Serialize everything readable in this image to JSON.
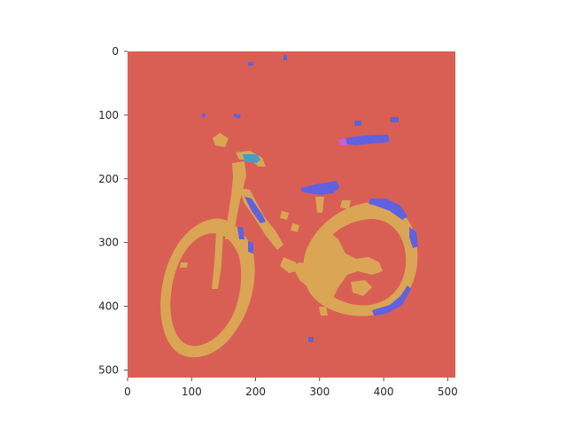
{
  "figure": {
    "kind": "segmentation-mask-image",
    "colors": {
      "background": "#D95F55",
      "bike": "#DAA555",
      "blue": "#6161E0",
      "cyan": "#4B9BC8",
      "magenta": "#C561D9",
      "tick": "#262626"
    }
  },
  "axes": {
    "x_ticks": [
      "0",
      "100",
      "200",
      "300",
      "400",
      "500"
    ],
    "y_ticks": [
      "0",
      "100",
      "200",
      "300",
      "400",
      "500"
    ],
    "xlim": [
      0,
      512
    ],
    "ylim": [
      512,
      0
    ],
    "grid": false
  },
  "image": {
    "subject-outline": "bicycle",
    "regions": [
      {
        "name": "background",
        "color": "background"
      },
      {
        "name": "bicycle-frame-and-wheels",
        "color": "bike"
      },
      {
        "name": "saddle-and-fender-highlights",
        "color": "blue"
      },
      {
        "name": "handlebar-grip",
        "color": "cyan"
      }
    ]
  }
}
